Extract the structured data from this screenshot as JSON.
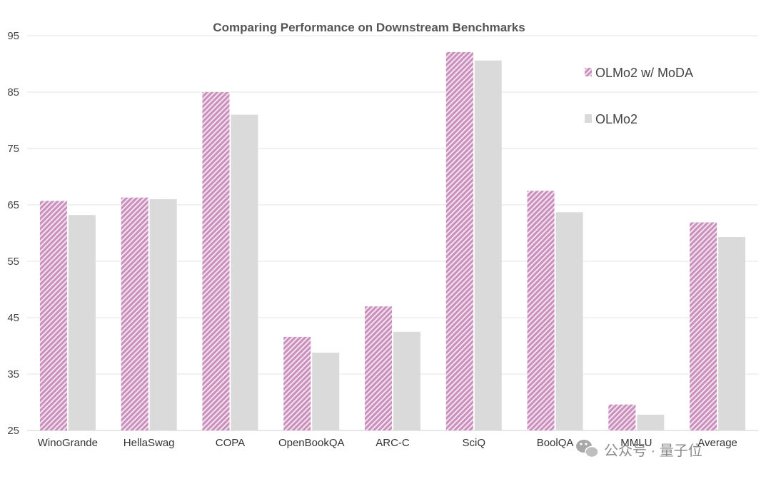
{
  "chart_data": {
    "type": "bar",
    "title": "Comparing Performance on Downstream Benchmarks",
    "xlabel": "",
    "ylabel": "",
    "ylim": [
      25,
      95
    ],
    "yticks": [
      25,
      35,
      45,
      55,
      65,
      75,
      85,
      95
    ],
    "grid": true,
    "legend_position": "top-right",
    "categories": [
      "WinoGrande",
      "HellaSwag",
      "COPA",
      "OpenBookQA",
      "ARC-C",
      "SciQ",
      "BoolQA",
      "MMLU",
      "Average"
    ],
    "series": [
      {
        "name": "OLMo2 w/ MoDA",
        "color": "#d9a2cc",
        "pattern": "diagonal-hatch",
        "values": [
          65.7,
          66.3,
          85.0,
          41.6,
          47.0,
          92.1,
          67.5,
          29.6,
          61.9
        ]
      },
      {
        "name": "OLMo2",
        "color": "#dadada",
        "pattern": "solid",
        "values": [
          63.2,
          66.0,
          81.0,
          38.8,
          42.5,
          90.6,
          63.7,
          27.8,
          59.3
        ]
      }
    ]
  },
  "watermark": {
    "text": "公众号 · 量子位",
    "icon": "wechat-icon"
  }
}
